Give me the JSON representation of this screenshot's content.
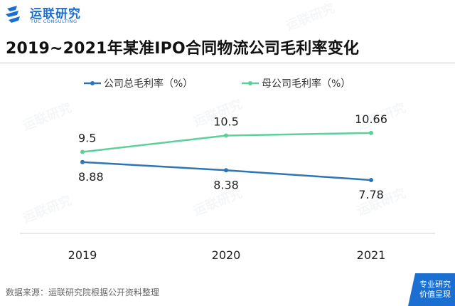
{
  "brand": {
    "name_cn": "运联研究",
    "name_en": "TUC CONSULTING",
    "color": "#1a6fd1"
  },
  "chart_data": {
    "type": "line",
    "title": "2019~2021年某准IPO合同物流公司毛利率变化",
    "categories": [
      "2019",
      "2020",
      "2021"
    ],
    "series": [
      {
        "name": "公司总毛利率（%）",
        "values": [
          8.88,
          8.38,
          7.78
        ],
        "labels": [
          "8.88",
          "8.38",
          "7.78"
        ],
        "color": "#2e75b6",
        "label_position": "below"
      },
      {
        "name": "母公司毛利率（%）",
        "values": [
          9.5,
          10.5,
          10.66
        ],
        "labels": [
          "9.5",
          "10.5",
          "10.66"
        ],
        "color": "#5ccf9b",
        "label_position": "above"
      }
    ],
    "ylim": [
      4,
      14
    ],
    "grid": false,
    "legend_position": "top"
  },
  "footer": {
    "source": "数据来源：运联研究院根据公开资料整理",
    "corner_line1": "专业研究",
    "corner_line2": "价值呈现",
    "corner_color": "#1a6fd1"
  }
}
